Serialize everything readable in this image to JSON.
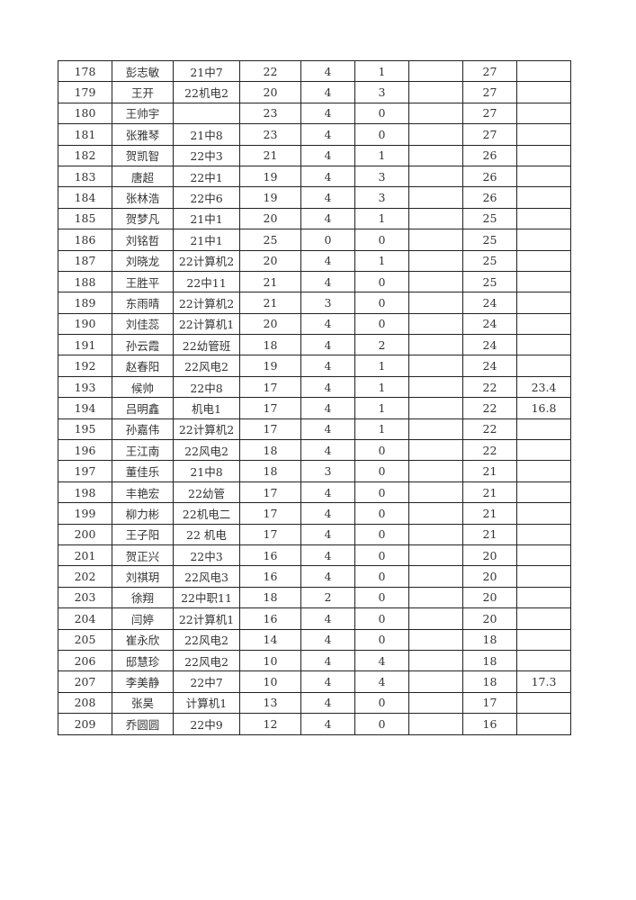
{
  "table": {
    "rows": [
      [
        "178",
        "彭志敏",
        "21中7",
        "22",
        "4",
        "1",
        "",
        "27",
        ""
      ],
      [
        "179",
        "王开",
        "22机电2",
        "20",
        "4",
        "3",
        "",
        "27",
        ""
      ],
      [
        "180",
        "王帅宇",
        "",
        "23",
        "4",
        "0",
        "",
        "27",
        ""
      ],
      [
        "181",
        "张雅琴",
        "21中8",
        "23",
        "4",
        "0",
        "",
        "27",
        ""
      ],
      [
        "182",
        "贺凯智",
        "22中3",
        "21",
        "4",
        "1",
        "",
        "26",
        ""
      ],
      [
        "183",
        "唐超",
        "22中1",
        "19",
        "4",
        "3",
        "",
        "26",
        ""
      ],
      [
        "184",
        "张林浩",
        "22中6",
        "19",
        "4",
        "3",
        "",
        "26",
        ""
      ],
      [
        "185",
        "贺梦凡",
        "21中1",
        "20",
        "4",
        "1",
        "",
        "25",
        ""
      ],
      [
        "186",
        "刘铭哲",
        "21中1",
        "25",
        "0",
        "0",
        "",
        "25",
        ""
      ],
      [
        "187",
        "刘晓龙",
        "22计算机2",
        "20",
        "4",
        "1",
        "",
        "25",
        ""
      ],
      [
        "188",
        "王胜平",
        "22中11",
        "21",
        "4",
        "0",
        "",
        "25",
        ""
      ],
      [
        "189",
        "东雨晴",
        "22计算机2",
        "21",
        "3",
        "0",
        "",
        "24",
        ""
      ],
      [
        "190",
        "刘佳蕊",
        "22计算机1",
        "20",
        "4",
        "0",
        "",
        "24",
        ""
      ],
      [
        "191",
        "孙云霞",
        "22幼管班",
        "18",
        "4",
        "2",
        "",
        "24",
        ""
      ],
      [
        "192",
        "赵春阳",
        "22风电2",
        "19",
        "4",
        "1",
        "",
        "24",
        ""
      ],
      [
        "193",
        "候帅",
        "22中8",
        "17",
        "4",
        "1",
        "",
        "22",
        "23.4"
      ],
      [
        "194",
        "吕明鑫",
        "机电1",
        "17",
        "4",
        "1",
        "",
        "22",
        "16.8"
      ],
      [
        "195",
        "孙嘉伟",
        "22计算机2",
        "17",
        "4",
        "1",
        "",
        "22",
        ""
      ],
      [
        "196",
        "王江南",
        "22风电2",
        "18",
        "4",
        "0",
        "",
        "22",
        ""
      ],
      [
        "197",
        "董佳乐",
        "21中8",
        "18",
        "3",
        "0",
        "",
        "21",
        ""
      ],
      [
        "198",
        "丰艳宏",
        "22幼管",
        "17",
        "4",
        "0",
        "",
        "21",
        ""
      ],
      [
        "199",
        "柳力彬",
        "22机电二",
        "17",
        "4",
        "0",
        "",
        "21",
        ""
      ],
      [
        "200",
        "王子阳",
        "22 机电",
        "17",
        "4",
        "0",
        "",
        "21",
        ""
      ],
      [
        "201",
        "贺正兴",
        "22中3",
        "16",
        "4",
        "0",
        "",
        "20",
        ""
      ],
      [
        "202",
        "刘祺玥",
        "22风电3",
        "16",
        "4",
        "0",
        "",
        "20",
        ""
      ],
      [
        "203",
        "徐翔",
        "22中职11",
        "18",
        "2",
        "0",
        "",
        "20",
        ""
      ],
      [
        "204",
        "闫婷",
        "22计算机1",
        "16",
        "4",
        "0",
        "",
        "20",
        ""
      ],
      [
        "205",
        "崔永欣",
        "22风电2",
        "14",
        "4",
        "0",
        "",
        "18",
        ""
      ],
      [
        "206",
        "邸慧珍",
        "22风电2",
        "10",
        "4",
        "4",
        "",
        "18",
        ""
      ],
      [
        "207",
        "李美静",
        "22中7",
        "10",
        "4",
        "4",
        "",
        "18",
        "17.3"
      ],
      [
        "208",
        "张昊",
        "计算机1",
        "13",
        "4",
        "0",
        "",
        "17",
        ""
      ],
      [
        "209",
        "乔圆圆",
        "22中9",
        "12",
        "4",
        "0",
        "",
        "16",
        ""
      ]
    ]
  }
}
